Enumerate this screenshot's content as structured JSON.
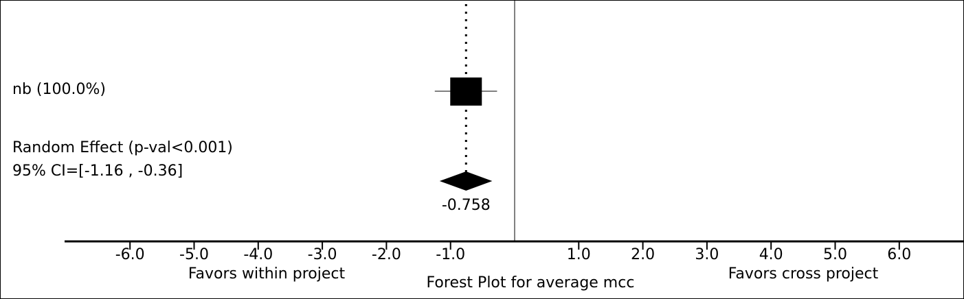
{
  "chart_data": {
    "type": "forest",
    "title": "Forest Plot for average mcc",
    "left_label": "Favors within project",
    "right_label": "Favors cross project",
    "xlim": [
      -7.0,
      7.0
    ],
    "xticks": [
      -6.0,
      -5.0,
      -4.0,
      -3.0,
      -2.0,
      -1.0,
      1.0,
      2.0,
      3.0,
      4.0,
      5.0,
      6.0
    ],
    "xtick_labels": [
      "-6.0",
      "-5.0",
      "-4.0",
      "-3.0",
      "-2.0",
      "-1.0",
      "1.0",
      "2.0",
      "3.0",
      "4.0",
      "5.0",
      "6.0"
    ],
    "studies": [
      {
        "label": "nb (100.0%)",
        "estimate": -0.758,
        "ci": [
          -1.16,
          -0.36
        ],
        "weight": 100.0
      }
    ],
    "summary": {
      "label_line1": "Random Effect (p-val<0.001)",
      "label_line2": "95% CI=[-1.16 , -0.36]",
      "estimate": -0.758,
      "estimate_label": "-0.758",
      "ci": [
        -1.16,
        -0.36
      ]
    },
    "reference_line": 0,
    "colors": {
      "marks": "#000000",
      "background": "#ffffff"
    }
  }
}
